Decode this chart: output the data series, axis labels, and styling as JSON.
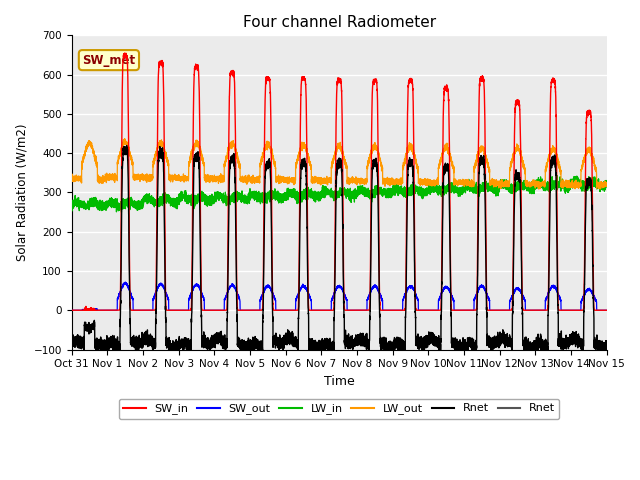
{
  "title": "Four channel Radiometer",
  "xlabel": "Time",
  "ylabel": "Solar Radiation (W/m2)",
  "ylim": [
    -100,
    700
  ],
  "yticks": [
    -100,
    0,
    100,
    200,
    300,
    400,
    500,
    600,
    700
  ],
  "xtick_labels": [
    "Oct 31",
    "Nov 1",
    "Nov 2",
    "Nov 3",
    "Nov 4",
    "Nov 5",
    "Nov 6",
    "Nov 7",
    "Nov 8",
    "Nov 9",
    "Nov 10",
    "Nov 11",
    "Nov 12",
    "Nov 13",
    "Nov 14",
    "Nov 15"
  ],
  "annotation_text": "SW_met",
  "colors": {
    "SW_in": "#ff0000",
    "SW_out": "#0000ff",
    "LW_in": "#00bb00",
    "LW_out": "#ff9900",
    "Rnet_black": "#000000",
    "Rnet_dark": "#555555"
  },
  "legend_entries": [
    "SW_in",
    "SW_out",
    "LW_in",
    "LW_out",
    "Rnet",
    "Rnet"
  ],
  "legend_colors": [
    "#ff0000",
    "#0000ff",
    "#00bb00",
    "#ff9900",
    "#000000",
    "#555555"
  ],
  "background_color": "#ebebeb",
  "sw_in_peaks": [
    650,
    630,
    620,
    605,
    590,
    590,
    585,
    585,
    585,
    565,
    590,
    530,
    585,
    505
  ],
  "num_days": 15
}
